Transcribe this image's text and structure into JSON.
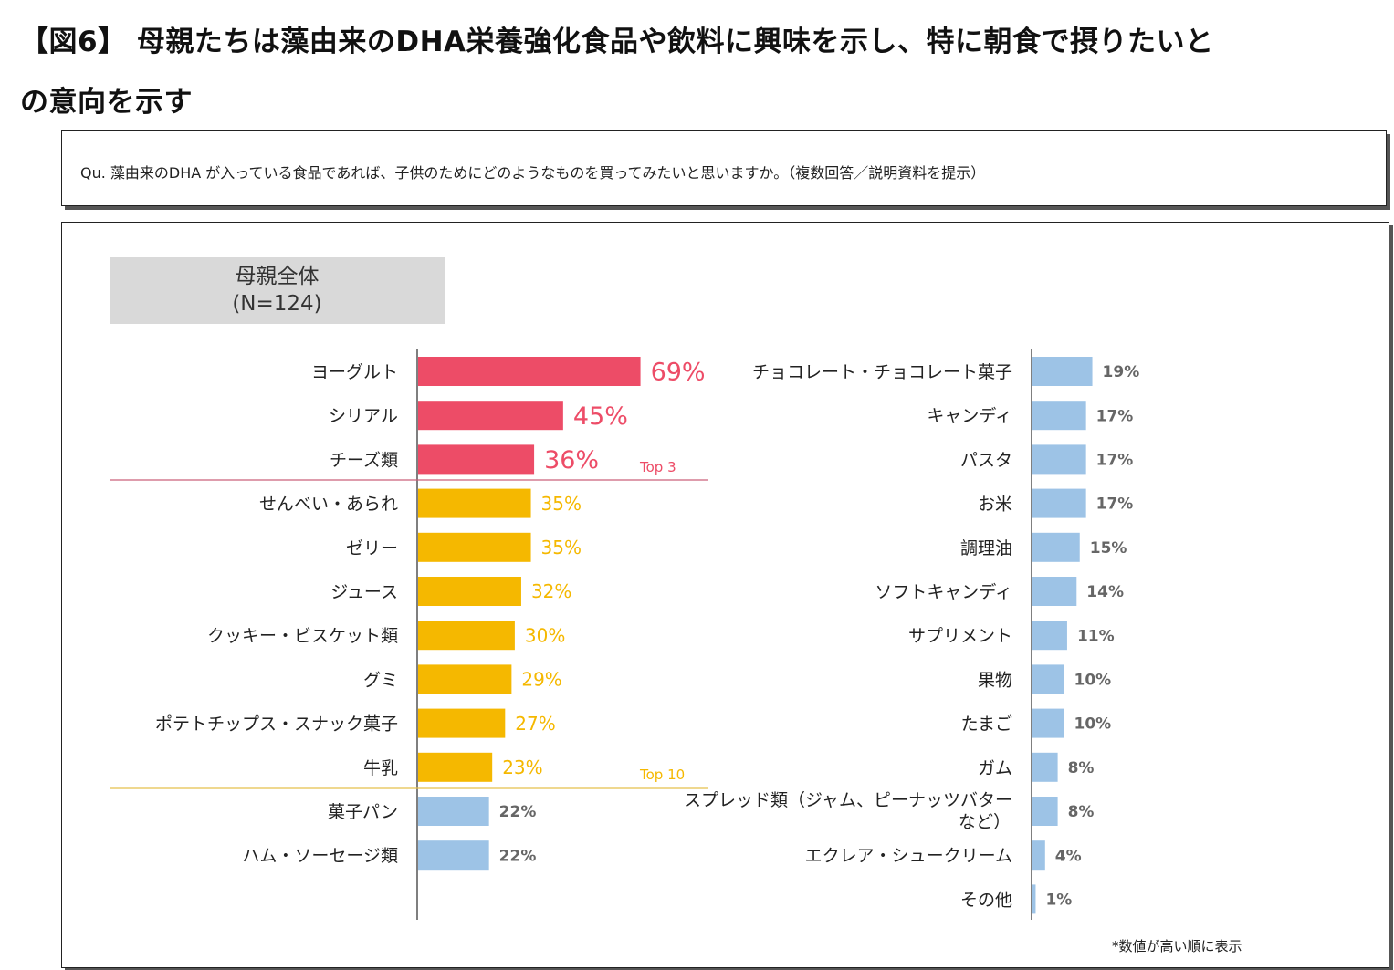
{
  "header": {
    "title_line1": "【図6】 母親たちは藻由来のDHA栄養強化食品や飲料に興味を示し、特に朝食で摂りたいと",
    "title_line2": "の意向を示す"
  },
  "question": "Qu. 藻由来のDHA が入っている食品であれば、子供のためにどのようなものを買ってみたいと思いますか。（複数回答／説明資料を提示）",
  "group": {
    "label": "母親全体",
    "n": "(N=124)"
  },
  "footnote": "*数値が高い順に表示",
  "colors": {
    "top3": "#ed4c67",
    "top10": "#f5b800",
    "others": "#9dc3e6",
    "top3_line": "#c9627a",
    "top10_line": "#e5c04c"
  },
  "chart_data": {
    "type": "bar",
    "orientation": "horizontal",
    "unit": "%",
    "markers": {
      "top3_label": "Top 3",
      "top10_label": "Top 10"
    },
    "left_column": {
      "categories": [
        "ヨーグルト",
        "シリアル",
        "チーズ類",
        "せんべい・あられ",
        "ゼリー",
        "ジュース",
        "クッキー・ビスケット類",
        "グミ",
        "ポテトチップス・スナック菓子",
        "牛乳",
        "菓子パン",
        "ハム・ソーセージ類"
      ],
      "values": [
        69,
        45,
        36,
        35,
        35,
        32,
        30,
        29,
        27,
        23,
        22,
        22
      ],
      "labels": [
        "69%",
        "45%",
        "36%",
        "35%",
        "35%",
        "32%",
        "30%",
        "29%",
        "27%",
        "23%",
        "22%",
        "22%"
      ],
      "tiers": [
        "top3",
        "top3",
        "top3",
        "top10",
        "top10",
        "top10",
        "top10",
        "top10",
        "top10",
        "top10",
        "other",
        "other"
      ]
    },
    "right_column": {
      "categories": [
        "チョコレート・チョコレート菓子",
        "キャンディ",
        "パスタ",
        "お米",
        "調理油",
        "ソフトキャンディ",
        "サプリメント",
        "果物",
        "たまご",
        "ガム",
        "スプレッド類（ジャム、ピーナッツバター|など）",
        "エクレア・シュークリーム",
        "その他"
      ],
      "values": [
        19,
        17,
        17,
        17,
        15,
        14,
        11,
        10,
        10,
        8,
        8,
        4,
        1
      ],
      "labels": [
        "19%",
        "17%",
        "17%",
        "17%",
        "15%",
        "14%",
        "11%",
        "10%",
        "10%",
        "8%",
        "8%",
        "4%",
        "1%"
      ],
      "tiers": [
        "other",
        "other",
        "other",
        "other",
        "other",
        "other",
        "other",
        "other",
        "other",
        "other",
        "other",
        "other",
        "other"
      ]
    }
  }
}
